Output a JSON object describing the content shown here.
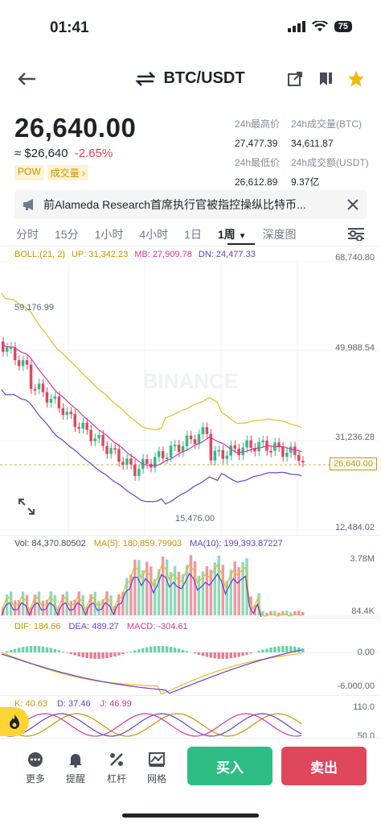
{
  "status": {
    "time": "01:41",
    "battery": "75"
  },
  "header": {
    "pair": "BTC/USDT"
  },
  "ticker": {
    "price": "26,640.00",
    "approx": "≈ $26,640",
    "change": "-2.65%",
    "tag_pow": "POW",
    "tag_volume": "成交量",
    "high_label": "24h最高价",
    "high_value": "27,477.39",
    "vol_btc_label": "24h成交量(BTC)",
    "vol_btc_value": "34,611.87",
    "low_label": "24h最低价",
    "low_value": "26,612.89",
    "vol_usdt_label": "24h成交额(USDT)",
    "vol_usdt_value": "9.37亿"
  },
  "news": {
    "text": "前Alameda Research首席执行官被指控操纵比特币..."
  },
  "tabs": [
    {
      "label": "分时"
    },
    {
      "label": "15分"
    },
    {
      "label": "1小时"
    },
    {
      "label": "4小时"
    },
    {
      "label": "1日"
    },
    {
      "label": "1周"
    },
    {
      "label": "深度图"
    }
  ],
  "main_chart": {
    "boll": "BOLL:(21, 2)",
    "up": "UP: 31,342.23",
    "mb": "MB: 27,909.78",
    "dn": "DN: 24,477.33",
    "y_ticks": [
      "68,740.80",
      "49,988.54",
      "31,236.28",
      "12,484.02"
    ],
    "high_mark": "59,176.99",
    "low_mark": "15,476.00",
    "current": "26,640.00",
    "watermark": "BINANCE"
  },
  "volume": {
    "vol": "Vol: 84,370.80502",
    "ma5": "MA(5): 180,859.79903",
    "ma10": "MA(10): 199,393.87227",
    "y_ticks": [
      "3.78M",
      "84.4K"
    ]
  },
  "macd": {
    "dif": "DIF: 184.66",
    "dea": "DEA: 489.27",
    "macd": "MACD: -304.61",
    "y_ticks": [
      "0.00",
      "-6,000.00"
    ]
  },
  "kdj": {
    "k": "K: 40.63",
    "d": "D: 37.46",
    "j": "J: 46.99",
    "y_ticks": [
      "110.0",
      "50.0"
    ]
  },
  "bottom_nav": [
    {
      "label": "更多",
      "icon": "more-icon"
    },
    {
      "label": "提醒",
      "icon": "bell-icon"
    },
    {
      "label": "杠杆",
      "icon": "leverage-icon"
    },
    {
      "label": "网格",
      "icon": "grid-icon"
    }
  ],
  "buttons": {
    "buy": "买入",
    "sell": "卖出"
  },
  "colors": {
    "up": "#2ebd85",
    "down": "#e0465c",
    "accent": "#fcd535",
    "boll_up": "#e8b923",
    "boll_mb": "#d6369c",
    "boll_dn": "#6a3fc8"
  }
}
